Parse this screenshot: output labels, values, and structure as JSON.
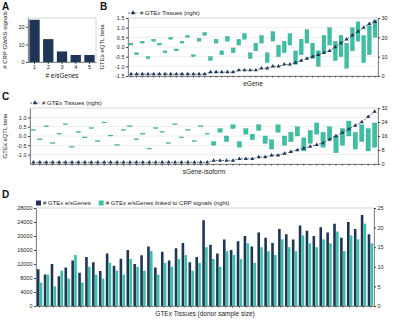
{
  "chart_data": [
    {
      "title": "A",
      "type": "bar",
      "categories": [
        "1",
        "2",
        "3",
        "4",
        "5"
      ],
      "values": [
        24,
        13,
        6,
        4,
        4
      ],
      "color": "#1d3557",
      "x_label": "# e/sGenes",
      "y_label": "# CRP GWAS signals",
      "ylim": [
        0,
        25
      ],
      "yticks": [
        0,
        10,
        20
      ]
    },
    {
      "title": "B",
      "type": "box",
      "categories": [
        null,
        null,
        null,
        null,
        null,
        null,
        null,
        null,
        null,
        null,
        null,
        null,
        null,
        null,
        null,
        null,
        null,
        null,
        null,
        null,
        null,
        null,
        null,
        null,
        null,
        null,
        null,
        null,
        null,
        null,
        null,
        null,
        null,
        null,
        null,
        null,
        null,
        null,
        null,
        null,
        null,
        null,
        null,
        null
      ],
      "x_label": "eGene",
      "y_label": "GTEx eQTL beta",
      "ylim": [
        -1.5,
        1.5
      ],
      "yticks": [
        -1.5,
        {
          "value": -1,
          "label": "-1.0"
        },
        -0.5,
        {
          "value": 0,
          "label": "0.0"
        },
        0.5,
        {
          "value": 1,
          "label": "1.0"
        },
        1.5
      ],
      "y2lim": [
        0,
        30
      ],
      "y2ticks": [
        0,
        10,
        20,
        30
      ],
      "grid": true,
      "legend": "top-left",
      "series": [
        {
          "type": "box",
          "color": "#3dbfa6",
          "low": [
            0.1,
            -0.4,
            0.2,
            -0.6,
            0.3,
            0.1,
            -0.3,
            0.4,
            -0.2,
            0.2,
            0.5,
            -0.5,
            0.3,
            0.6,
            -0.7,
            0.2,
            -0.4,
            0.3,
            -0.3,
            0.1,
            0.4,
            -0.6,
            -0.2,
            0.2,
            -0.8,
            0.3,
            -0.5,
            -0.3,
            0.1,
            -0.9,
            -0.4,
            0.2,
            -0.6,
            -1.0,
            -0.3,
            0.1,
            -0.7,
            -0.5,
            -1.1,
            -0.2,
            0.3,
            -0.8,
            -0.4,
            0.5
          ],
          "high": [
            0.2,
            -0.3,
            0.3,
            -0.5,
            0.4,
            0.2,
            -0.2,
            0.5,
            -0.1,
            0.3,
            0.6,
            -0.4,
            0.45,
            0.75,
            -0.5,
            0.4,
            -0.2,
            0.55,
            -0.05,
            0.4,
            0.7,
            -0.3,
            0.2,
            0.6,
            -0.3,
            0.8,
            0.1,
            0.3,
            0.7,
            -0.2,
            0.4,
            0.9,
            0.2,
            -0.2,
            0.6,
            1.0,
            0.3,
            0.6,
            0.2,
            1.0,
            1.3,
            0.6,
            1.1,
            1.4
          ]
        },
        {
          "name": "# GTEx Tissues (right)",
          "type": "line",
          "axis": "y2",
          "color": "#1d3557",
          "marker": "triangle",
          "line_style": "dashed",
          "values": [
            1,
            1,
            1,
            1,
            1,
            1,
            1,
            1,
            1,
            1,
            1,
            1,
            1,
            1,
            2,
            2,
            2,
            2,
            2,
            3,
            3,
            3,
            3,
            4,
            4,
            5,
            5,
            6,
            6,
            7,
            8,
            9,
            10,
            11,
            12,
            13,
            15,
            17,
            19,
            21,
            23,
            25,
            27,
            28
          ]
        }
      ]
    },
    {
      "title": "C",
      "type": "box",
      "categories": [
        null,
        null,
        null,
        null,
        null,
        null,
        null,
        null,
        null,
        null,
        null,
        null,
        null,
        null,
        null,
        null,
        null,
        null,
        null,
        null,
        null,
        null,
        null,
        null,
        null,
        null,
        null,
        null,
        null,
        null,
        null,
        null,
        null,
        null,
        null,
        null,
        null,
        null,
        null,
        null,
        null,
        null,
        null,
        null,
        null,
        null,
        null,
        null,
        null,
        null,
        null,
        null,
        null,
        null
      ],
      "x_label": "sGene-isoform",
      "y_label": "GTEx sQTL beta",
      "ylim": [
        -1.5,
        1.5
      ],
      "yticks": [
        {
          "value": -1,
          "label": "-1.0"
        },
        -0.5,
        {
          "value": 0,
          "label": "0.0"
        },
        0.5,
        {
          "value": 1,
          "label": "1.0"
        }
      ],
      "y2lim": [
        0,
        32
      ],
      "y2ticks": [
        0,
        8,
        16,
        24,
        32
      ],
      "grid": true,
      "legend": "top-left",
      "series": [
        {
          "type": "box",
          "color": "#3dbfa6",
          "low": [
            0.3,
            -0.2,
            0.5,
            -0.4,
            0.1,
            0.6,
            -0.6,
            0.2,
            -0.1,
            0.4,
            -0.3,
            0.7,
            0.0,
            -0.5,
            0.3,
            0.5,
            -0.2,
            0.1,
            -0.7,
            0.4,
            0.2,
            -0.4,
            0.6,
            -0.1,
            0.3,
            -0.3,
            0.5,
            0.1,
            -0.5,
            0.2,
            -0.3,
            0.4,
            -0.6,
            0.1,
            -0.2,
            0.3,
            -0.4,
            -0.7,
            0.2,
            -0.5,
            -0.3,
            0.0,
            -0.8,
            -0.4,
            0.1,
            -0.6,
            -0.2,
            -0.9,
            -0.5,
            0.0,
            -0.7,
            -0.3,
            -0.8,
            -0.6
          ],
          "high": [
            0.35,
            -0.15,
            0.55,
            -0.35,
            0.15,
            0.65,
            -0.55,
            0.25,
            -0.05,
            0.45,
            -0.25,
            0.75,
            0.05,
            -0.45,
            0.35,
            0.55,
            -0.15,
            0.15,
            -0.65,
            0.45,
            0.25,
            -0.35,
            0.65,
            -0.05,
            0.35,
            -0.25,
            0.55,
            0.15,
            -0.3,
            0.4,
            0.0,
            0.6,
            -0.3,
            0.4,
            0.1,
            0.6,
            0.0,
            -0.2,
            0.6,
            0.0,
            0.2,
            0.5,
            -0.1,
            0.3,
            0.7,
            0.2,
            0.5,
            0.0,
            0.4,
            0.8,
            0.2,
            0.6,
            0.4,
            0.7
          ]
        },
        {
          "name": "# GTEx Tissues (right)",
          "type": "line",
          "axis": "y2",
          "color": "#1d3557",
          "marker": "triangle",
          "line_style": "dashed",
          "values": [
            1,
            1,
            1,
            1,
            1,
            1,
            1,
            1,
            1,
            1,
            1,
            1,
            1,
            1,
            1,
            1,
            1,
            1,
            1,
            1,
            1,
            1,
            1,
            1,
            1,
            1,
            1,
            1,
            2,
            2,
            2,
            2,
            3,
            3,
            3,
            4,
            4,
            5,
            5,
            6,
            7,
            8,
            9,
            10,
            11,
            12,
            14,
            16,
            18,
            20,
            22,
            24,
            27,
            30
          ]
        }
      ]
    },
    {
      "title": "D",
      "type": "bar",
      "categories": [
        null,
        null,
        null,
        null,
        null,
        null,
        null,
        null,
        null,
        null,
        null,
        null,
        null,
        null,
        null,
        null,
        null,
        null,
        null,
        null,
        null,
        null,
        null,
        null,
        null,
        null,
        null,
        null,
        null,
        null,
        null,
        null,
        null,
        null,
        null,
        null,
        null,
        null,
        null,
        null,
        null,
        null,
        null,
        null,
        null,
        null,
        null,
        null,
        null
      ],
      "x_label": "GTEx Tissues (donor sample size)",
      "ylim": [
        0,
        28000
      ],
      "yticks": [
        0,
        4000,
        8000,
        12000,
        16000,
        20000,
        24000,
        28000
      ],
      "y2lim": [
        0,
        25
      ],
      "y2ticks": [
        0,
        5,
        10,
        15,
        20,
        25
      ],
      "legend": "top-left",
      "series": [
        {
          "name": "# GTEx e/sGenes",
          "type": "bar",
          "color": "#1d3557",
          "values": [
            10500,
            9000,
            12000,
            8500,
            11000,
            13000,
            9500,
            14000,
            12500,
            10000,
            15000,
            11500,
            13500,
            16000,
            12000,
            14500,
            17000,
            11000,
            15500,
            13000,
            16500,
            18000,
            12500,
            14000,
            24500,
            17500,
            15000,
            19000,
            16000,
            18500,
            20000,
            17000,
            21000,
            19500,
            18000,
            22000,
            20500,
            19000,
            23000,
            21500,
            20000,
            22500,
            21000,
            23500,
            19500,
            24000,
            22000,
            26000,
            20500
          ]
        },
        {
          "name": "# GTEx e/sGenes linked to CRP signals (right)",
          "type": "bar",
          "axis": "y2",
          "color": "#3dbfa6",
          "values": [
            6,
            8,
            5,
            9,
            7,
            13,
            6,
            10,
            8,
            7,
            11,
            9,
            8,
            12,
            10,
            9,
            14,
            8,
            11,
            10,
            12,
            13,
            9,
            11,
            15,
            12,
            10,
            14,
            13,
            12,
            16,
            11,
            15,
            14,
            13,
            17,
            15,
            14,
            18,
            16,
            15,
            17,
            16,
            19,
            14,
            18,
            17,
            21,
            16
          ]
        }
      ]
    }
  ]
}
